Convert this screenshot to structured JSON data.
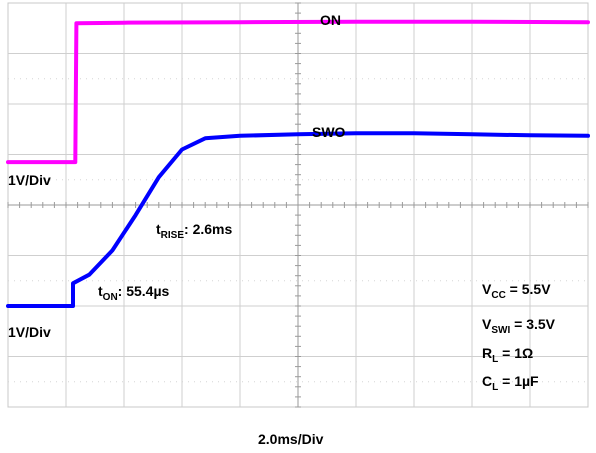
{
  "chart_data": {
    "type": "line",
    "grid": true,
    "x_divisions": 10,
    "y_divisions": 8,
    "time_scale": "2.0ms/Div",
    "series": [
      {
        "name": "ON",
        "color": "#ff00ff",
        "channel_scale": "1V/Div",
        "points": [
          [
            0.0,
            2.85
          ],
          [
            1.16,
            2.85
          ],
          [
            1.18,
            5.6
          ],
          [
            2.0,
            5.61
          ],
          [
            4.0,
            5.62
          ],
          [
            6.0,
            5.63
          ],
          [
            8.0,
            5.63
          ],
          [
            10.0,
            5.62
          ]
        ]
      },
      {
        "name": "SWO",
        "color": "#0000ff",
        "channel_scale": "1V/Div",
        "points": [
          [
            0.0,
            0.0
          ],
          [
            1.12,
            0.0
          ],
          [
            1.12,
            0.45
          ],
          [
            1.4,
            0.62
          ],
          [
            1.8,
            1.1
          ],
          [
            2.2,
            1.8
          ],
          [
            2.6,
            2.55
          ],
          [
            3.0,
            3.1
          ],
          [
            3.4,
            3.32
          ],
          [
            4.0,
            3.37
          ],
          [
            5.0,
            3.4
          ],
          [
            6.0,
            3.42
          ],
          [
            7.0,
            3.42
          ],
          [
            8.0,
            3.4
          ],
          [
            9.0,
            3.38
          ],
          [
            10.0,
            3.37
          ]
        ]
      }
    ]
  },
  "labels": {
    "on": "ON",
    "swo": "SWO",
    "ch1_scale": "1V/Div",
    "ch2_scale": "1V/Div",
    "time_scale": "2.0ms/Div",
    "t_rise_main": "t",
    "t_rise_sub": "RISE",
    "t_rise_value": ": 2.6ms",
    "t_on_main": "t",
    "t_on_sub": "ON",
    "t_on_value": ": 55.4µs",
    "vcc_main": "V",
    "vcc_sub": "CC",
    "vcc_value": " = 5.5V",
    "vswi_main": "V",
    "vswi_sub": "SWI",
    "vswi_value": " = 3.5V",
    "rl_main": "R",
    "rl_sub": "L",
    "rl_value": " = 1Ω",
    "cl_main": "C",
    "cl_sub": "L",
    "cl_value": " = 1µF"
  }
}
